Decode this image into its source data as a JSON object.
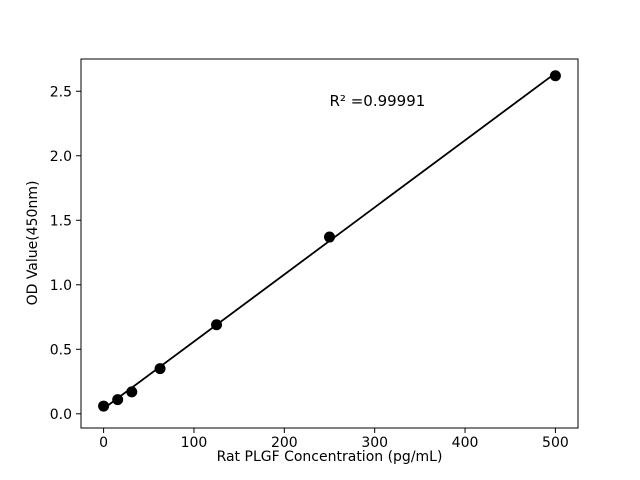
{
  "chart_data": {
    "type": "scatter",
    "title": "",
    "xlabel": "Rat PLGF Concentration (pg/mL)",
    "ylabel": "OD Value(450nm)",
    "x": [
      0,
      15.6,
      31.2,
      62.5,
      125,
      250,
      500
    ],
    "y": [
      0.06,
      0.11,
      0.17,
      0.35,
      0.69,
      1.37,
      2.62
    ],
    "fit_line": {
      "x": [
        0,
        500
      ],
      "y": [
        0.04,
        2.64
      ]
    },
    "annotation": {
      "text": "R² =0.99991",
      "x": 250,
      "y": 2.4
    },
    "xlim": [
      -25,
      525
    ],
    "ylim": [
      -0.11,
      2.75
    ],
    "xticks": [
      "0",
      "100",
      "200",
      "300",
      "400",
      "500"
    ],
    "yticks": [
      "0.0",
      "0.5",
      "1.0",
      "1.5",
      "2.0",
      "2.5"
    ],
    "grid": false,
    "marker_color": "#000000",
    "line_color": "#000000",
    "background": "#ffffff"
  }
}
